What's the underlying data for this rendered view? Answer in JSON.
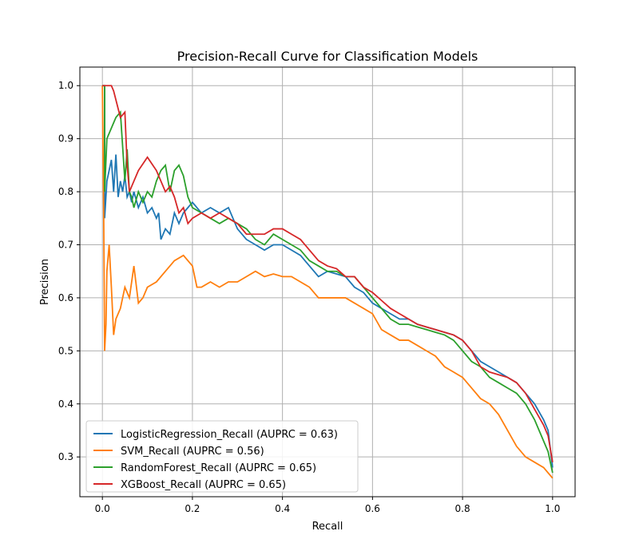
{
  "chart_data": {
    "type": "line",
    "title": "Precision-Recall Curve for Classification Models",
    "xlabel": "Recall",
    "ylabel": "Precision",
    "xlim": [
      -0.05,
      1.05
    ],
    "ylim": [
      0.225,
      1.035
    ],
    "grid": true,
    "legend_position": "lower-left",
    "x_ticks": [
      0.0,
      0.2,
      0.4,
      0.6,
      0.8,
      1.0
    ],
    "x_tick_labels": [
      "0.0",
      "0.2",
      "0.4",
      "0.6",
      "0.8",
      "1.0"
    ],
    "y_ticks": [
      0.3,
      0.4,
      0.5,
      0.6,
      0.7,
      0.8,
      0.9,
      1.0
    ],
    "y_tick_labels": [
      "0.3",
      "0.4",
      "0.5",
      "0.6",
      "0.7",
      "0.8",
      "0.9",
      "1.0"
    ],
    "series": [
      {
        "name": "LogisticRegression_Recall (AUPRC = 0.63)",
        "color": "#1f77b4",
        "x": [
          0,
          0.005,
          0.005,
          0.01,
          0.02,
          0.025,
          0.03,
          0.035,
          0.04,
          0.045,
          0.05,
          0.055,
          0.06,
          0.065,
          0.07,
          0.08,
          0.09,
          0.1,
          0.11,
          0.12,
          0.125,
          0.13,
          0.14,
          0.15,
          0.16,
          0.17,
          0.18,
          0.19,
          0.2,
          0.22,
          0.24,
          0.26,
          0.28,
          0.3,
          0.32,
          0.34,
          0.36,
          0.38,
          0.4,
          0.42,
          0.44,
          0.46,
          0.48,
          0.5,
          0.52,
          0.54,
          0.56,
          0.58,
          0.6,
          0.62,
          0.64,
          0.66,
          0.68,
          0.7,
          0.72,
          0.74,
          0.76,
          0.78,
          0.8,
          0.82,
          0.84,
          0.86,
          0.88,
          0.9,
          0.92,
          0.94,
          0.96,
          0.98,
          0.99,
          1.0
        ],
        "y": [
          1.0,
          1.0,
          0.75,
          0.82,
          0.86,
          0.8,
          0.87,
          0.79,
          0.82,
          0.8,
          0.83,
          0.79,
          0.8,
          0.78,
          0.8,
          0.77,
          0.79,
          0.76,
          0.77,
          0.75,
          0.76,
          0.71,
          0.73,
          0.72,
          0.76,
          0.74,
          0.76,
          0.77,
          0.78,
          0.76,
          0.77,
          0.76,
          0.77,
          0.73,
          0.71,
          0.7,
          0.69,
          0.7,
          0.7,
          0.69,
          0.68,
          0.66,
          0.64,
          0.65,
          0.645,
          0.64,
          0.62,
          0.61,
          0.59,
          0.58,
          0.57,
          0.56,
          0.56,
          0.55,
          0.545,
          0.54,
          0.535,
          0.53,
          0.52,
          0.5,
          0.48,
          0.47,
          0.46,
          0.45,
          0.44,
          0.42,
          0.4,
          0.37,
          0.35,
          0.28
        ]
      },
      {
        "name": "SVM_Recall (AUPRC = 0.56)",
        "color": "#ff7f0e",
        "x": [
          0,
          0.003,
          0.005,
          0.008,
          0.01,
          0.015,
          0.02,
          0.025,
          0.03,
          0.04,
          0.05,
          0.06,
          0.07,
          0.08,
          0.09,
          0.1,
          0.12,
          0.14,
          0.16,
          0.18,
          0.2,
          0.21,
          0.22,
          0.24,
          0.26,
          0.28,
          0.3,
          0.32,
          0.34,
          0.36,
          0.38,
          0.4,
          0.42,
          0.44,
          0.46,
          0.48,
          0.5,
          0.52,
          0.54,
          0.56,
          0.58,
          0.6,
          0.62,
          0.64,
          0.66,
          0.68,
          0.7,
          0.72,
          0.74,
          0.76,
          0.78,
          0.8,
          0.82,
          0.84,
          0.86,
          0.88,
          0.9,
          0.92,
          0.94,
          0.96,
          0.98,
          1.0
        ],
        "y": [
          1.0,
          0.75,
          0.5,
          0.55,
          0.65,
          0.7,
          0.62,
          0.53,
          0.56,
          0.58,
          0.62,
          0.6,
          0.66,
          0.59,
          0.6,
          0.62,
          0.63,
          0.65,
          0.67,
          0.68,
          0.66,
          0.62,
          0.62,
          0.63,
          0.62,
          0.63,
          0.63,
          0.64,
          0.65,
          0.64,
          0.645,
          0.64,
          0.64,
          0.63,
          0.62,
          0.6,
          0.6,
          0.6,
          0.6,
          0.59,
          0.58,
          0.57,
          0.54,
          0.53,
          0.52,
          0.52,
          0.51,
          0.5,
          0.49,
          0.47,
          0.46,
          0.45,
          0.43,
          0.41,
          0.4,
          0.38,
          0.35,
          0.32,
          0.3,
          0.29,
          0.28,
          0.26
        ]
      },
      {
        "name": "RandomForest_Recall (AUPRC = 0.65)",
        "color": "#2ca02c",
        "x": [
          0,
          0.005,
          0.005,
          0.01,
          0.02,
          0.03,
          0.04,
          0.05,
          0.055,
          0.06,
          0.065,
          0.07,
          0.08,
          0.09,
          0.1,
          0.11,
          0.12,
          0.13,
          0.14,
          0.15,
          0.16,
          0.17,
          0.18,
          0.19,
          0.2,
          0.22,
          0.24,
          0.26,
          0.28,
          0.3,
          0.32,
          0.34,
          0.36,
          0.38,
          0.4,
          0.42,
          0.44,
          0.46,
          0.48,
          0.5,
          0.52,
          0.54,
          0.56,
          0.58,
          0.6,
          0.62,
          0.64,
          0.66,
          0.68,
          0.7,
          0.72,
          0.74,
          0.76,
          0.78,
          0.8,
          0.82,
          0.84,
          0.86,
          0.88,
          0.9,
          0.92,
          0.94,
          0.96,
          0.98,
          0.99,
          1.0
        ],
        "y": [
          1.0,
          1.0,
          0.8,
          0.9,
          0.92,
          0.94,
          0.95,
          0.82,
          0.88,
          0.8,
          0.79,
          0.77,
          0.8,
          0.78,
          0.8,
          0.79,
          0.82,
          0.84,
          0.85,
          0.8,
          0.84,
          0.85,
          0.83,
          0.79,
          0.77,
          0.76,
          0.75,
          0.74,
          0.75,
          0.74,
          0.73,
          0.71,
          0.7,
          0.72,
          0.71,
          0.7,
          0.69,
          0.67,
          0.66,
          0.65,
          0.65,
          0.64,
          0.64,
          0.62,
          0.6,
          0.58,
          0.56,
          0.55,
          0.55,
          0.545,
          0.54,
          0.535,
          0.53,
          0.52,
          0.5,
          0.48,
          0.47,
          0.45,
          0.44,
          0.43,
          0.42,
          0.4,
          0.37,
          0.33,
          0.31,
          0.27
        ]
      },
      {
        "name": "XGBoost_Recall (AUPRC = 0.65)",
        "color": "#d62728",
        "x": [
          0,
          0.02,
          0.025,
          0.04,
          0.05,
          0.055,
          0.06,
          0.065,
          0.08,
          0.1,
          0.12,
          0.13,
          0.14,
          0.15,
          0.16,
          0.17,
          0.18,
          0.19,
          0.2,
          0.22,
          0.24,
          0.26,
          0.28,
          0.3,
          0.32,
          0.34,
          0.36,
          0.38,
          0.4,
          0.42,
          0.44,
          0.46,
          0.48,
          0.5,
          0.52,
          0.54,
          0.56,
          0.58,
          0.6,
          0.62,
          0.64,
          0.66,
          0.68,
          0.7,
          0.72,
          0.74,
          0.76,
          0.78,
          0.8,
          0.82,
          0.84,
          0.86,
          0.88,
          0.9,
          0.92,
          0.94,
          0.96,
          0.98,
          0.99,
          1.0
        ],
        "y": [
          1.0,
          1.0,
          0.99,
          0.94,
          0.95,
          0.85,
          0.8,
          0.81,
          0.84,
          0.865,
          0.84,
          0.82,
          0.8,
          0.81,
          0.79,
          0.76,
          0.77,
          0.74,
          0.75,
          0.76,
          0.75,
          0.76,
          0.75,
          0.74,
          0.72,
          0.72,
          0.72,
          0.73,
          0.73,
          0.72,
          0.71,
          0.69,
          0.67,
          0.66,
          0.655,
          0.64,
          0.64,
          0.62,
          0.61,
          0.595,
          0.58,
          0.57,
          0.56,
          0.55,
          0.545,
          0.54,
          0.535,
          0.53,
          0.52,
          0.5,
          0.47,
          0.46,
          0.455,
          0.45,
          0.44,
          0.42,
          0.39,
          0.36,
          0.34,
          0.29
        ]
      }
    ]
  }
}
